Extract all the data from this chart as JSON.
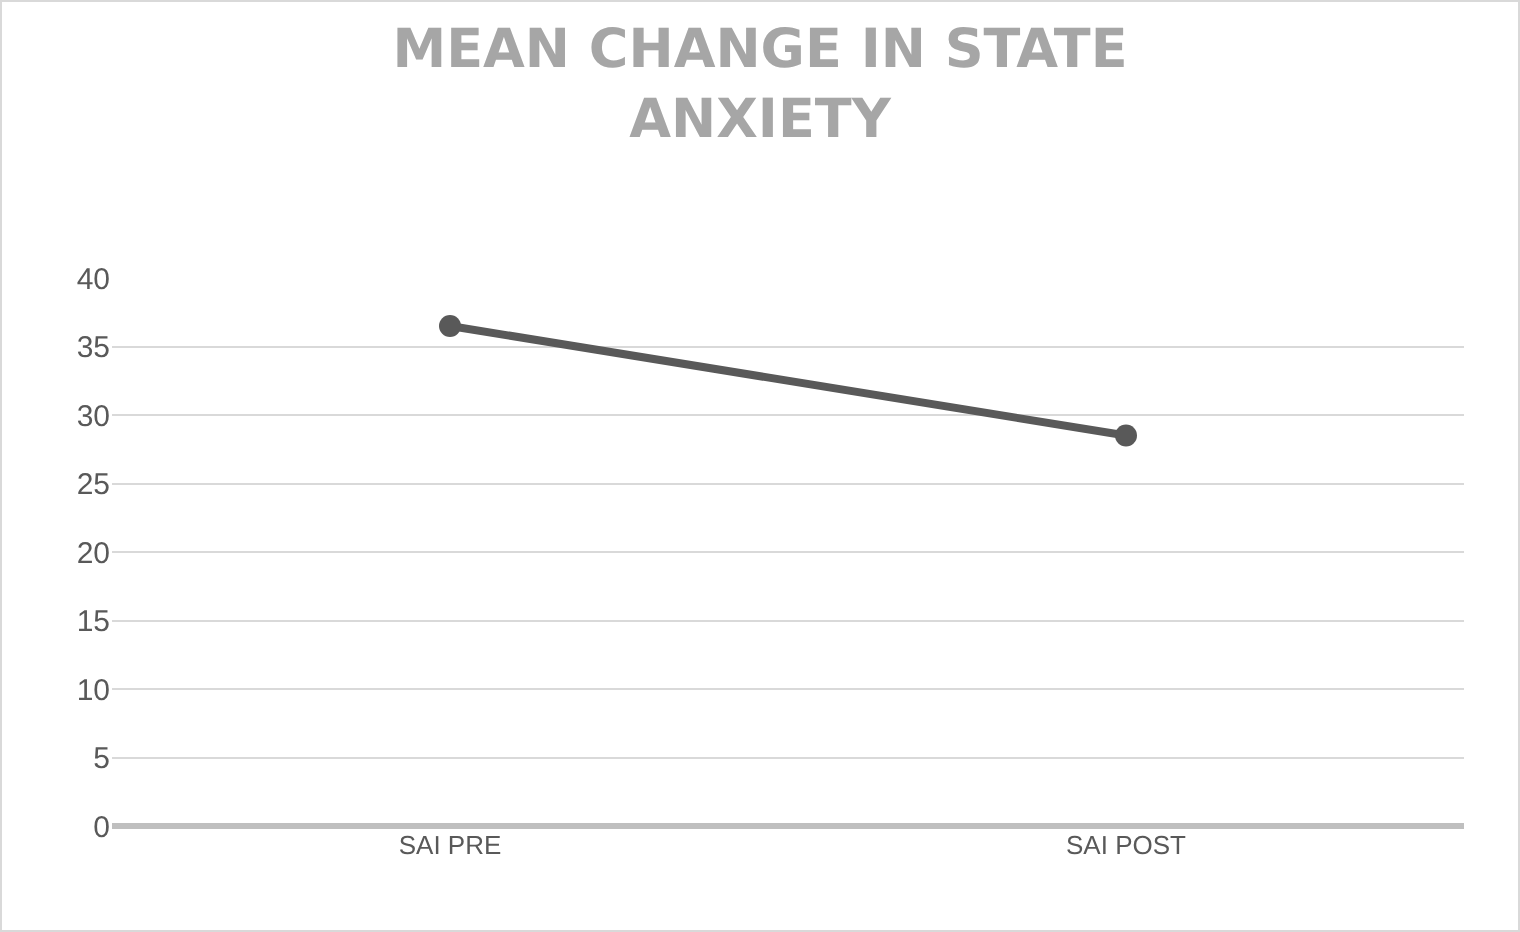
{
  "chart_data": {
    "type": "line",
    "title": "MEAN CHANGE IN STATE ANXIETY",
    "categories": [
      "SAI PRE",
      "SAI POST"
    ],
    "series": [
      {
        "color": "#595959",
        "values": [
          36.5,
          28.5
        ]
      }
    ],
    "ylim": [
      0,
      40
    ],
    "yticks": [
      0,
      5,
      10,
      15,
      20,
      25,
      30,
      35,
      40
    ],
    "grid": "y",
    "legend": false,
    "marker": "circle",
    "line_style": "solid"
  }
}
